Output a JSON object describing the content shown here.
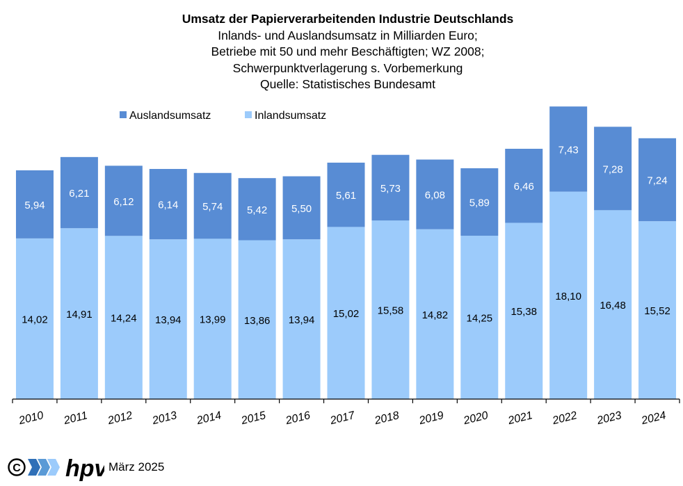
{
  "titles": {
    "main": "Umsatz der Papierverarbeitenden Industrie Deutschlands",
    "line1": "Inlands- und Auslandsumsatz  in Milliarden Euro;",
    "line2": "Betriebe mit 50 und mehr  Beschäftigten; WZ 2008;",
    "line3": "Schwerpunktverlagerung  s. Vorbemerkung",
    "line4": "Quelle:  Statistisches Bundesamt"
  },
  "footer": {
    "copyright": "©",
    "logo_text": "hpv",
    "date": "März 2025"
  },
  "colors": {
    "ausland": "#588cd4",
    "inland": "#9ccbfb",
    "axis": "#000000"
  },
  "chart_data": {
    "type": "bar",
    "stacked": true,
    "categories": [
      "2010",
      "2011",
      "2012",
      "2013",
      "2014",
      "2015",
      "2016",
      "2017",
      "2018",
      "2019",
      "2020",
      "2021",
      "2022",
      "2023",
      "2024"
    ],
    "series": [
      {
        "name": "Inlandsumsatz",
        "values": [
          14.02,
          14.91,
          14.24,
          13.94,
          13.99,
          13.86,
          13.94,
          15.02,
          15.58,
          14.82,
          14.25,
          15.38,
          18.1,
          16.48,
          15.52
        ],
        "labels": [
          "14,02",
          "14,91",
          "14,24",
          "13,94",
          "13,99",
          "13,86",
          "13,94",
          "15,02",
          "15,58",
          "14,82",
          "14,25",
          "15,38",
          "18,10",
          "16,48",
          "15,52"
        ]
      },
      {
        "name": "Auslandsumsatz",
        "values": [
          5.94,
          6.21,
          6.12,
          6.14,
          5.74,
          5.42,
          5.5,
          5.61,
          5.73,
          6.08,
          5.89,
          6.46,
          7.43,
          7.28,
          7.24
        ],
        "labels": [
          "5,94",
          "6,21",
          "6,12",
          "6,14",
          "5,74",
          "5,42",
          "5,50",
          "5,61",
          "5,73",
          "6,08",
          "5,89",
          "6,46",
          "7,43",
          "7,28",
          "7,24"
        ]
      }
    ],
    "legend": [
      "Auslandsumsatz",
      "Inlandsumsatz"
    ],
    "legend_position": "top-left",
    "ylim": [
      0,
      25.6
    ],
    "grid": false,
    "y_axis_visible": false
  }
}
